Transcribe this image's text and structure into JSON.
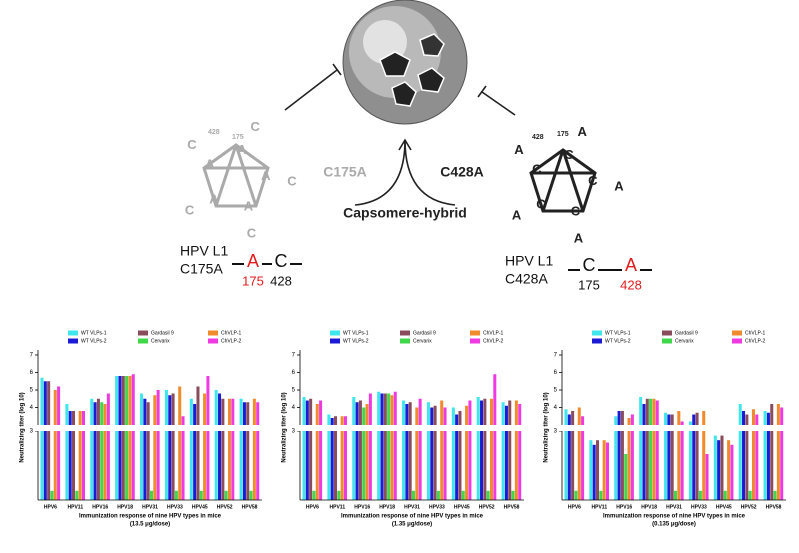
{
  "diagram": {
    "center_labels": {
      "left": "C175A",
      "right": "C428A",
      "bottom": "Capsomere-hybrid"
    },
    "left": {
      "protein": "HPV L1",
      "mutant": "C175A",
      "letters": [
        "A",
        "C"
      ],
      "numbers": [
        "175",
        "428"
      ],
      "pentagon_numbers": [
        "428",
        "175"
      ],
      "inner": [
        "A",
        "A",
        "A",
        "A",
        "A"
      ],
      "outer": [
        "C",
        "C",
        "C",
        "C",
        "C"
      ]
    },
    "right": {
      "protein": "HPV L1",
      "mutant": "C428A",
      "letters": [
        "C",
        "A"
      ],
      "numbers": [
        "175",
        "428"
      ],
      "pentagon_numbers": [
        "428",
        "175"
      ],
      "inner": [
        "C",
        "C",
        "C",
        "C",
        "C"
      ],
      "outer": [
        "A",
        "A",
        "A",
        "A",
        "A"
      ]
    }
  },
  "chart_data": [
    {
      "type": "bar",
      "subtitle": "(13.5 μg/dose)",
      "x_label": "Immunization response of nine HPV types in mice",
      "y_label": "Neutralizing titer (log 10)",
      "categories": [
        "HPV6",
        "HPV11",
        "HPV16",
        "HPV18",
        "HPV31",
        "HPV33",
        "HPV45",
        "HPV52",
        "HPV58"
      ],
      "ylim": [
        0,
        7
      ],
      "ybreak": 3,
      "yticks": [
        3,
        4,
        5,
        6,
        7
      ],
      "series": [
        {
          "name": "WT VLPs-1",
          "color": "#3fe6ee",
          "values": [
            5.7,
            4.2,
            4.5,
            5.8,
            4.8,
            5.0,
            4.5,
            5.0,
            4.5
          ]
        },
        {
          "name": "WT VLPs-2",
          "color": "#1b1bd6",
          "values": [
            5.5,
            3.8,
            4.3,
            5.8,
            4.5,
            4.7,
            4.2,
            4.8,
            4.3
          ]
        },
        {
          "name": "Gardasil 9",
          "color": "#8a4c5c",
          "values": [
            5.5,
            3.8,
            4.5,
            5.8,
            4.3,
            4.8,
            5.2,
            4.5,
            4.3
          ]
        },
        {
          "name": "Cervarix",
          "color": "#3fd84a",
          "values": [
            0.4,
            0.4,
            4.3,
            5.8,
            0.4,
            0.4,
            0.4,
            0.4,
            0.4
          ]
        },
        {
          "name": "ChVLP-1",
          "color": "#f08a2c",
          "values": [
            5.0,
            3.8,
            4.2,
            5.8,
            4.7,
            5.2,
            4.8,
            4.5,
            4.5
          ]
        },
        {
          "name": "ChVLP-2",
          "color": "#ee3ae0",
          "values": [
            5.2,
            3.8,
            4.8,
            5.9,
            5.0,
            3.5,
            5.8,
            4.5,
            4.3
          ]
        }
      ]
    },
    {
      "type": "bar",
      "subtitle": "(1.35 μg/dose)",
      "x_label": "Immunization response of nine HPV types in mice",
      "y_label": "Neutralizing titer (log 10)",
      "categories": [
        "HPV6",
        "HPV11",
        "HPV16",
        "HPV18",
        "HPV31",
        "HPV33",
        "HPV45",
        "HPV52",
        "HPV58"
      ],
      "ylim": [
        0,
        7
      ],
      "ybreak": 3,
      "yticks": [
        3,
        4,
        5,
        6,
        7
      ],
      "series": [
        {
          "name": "WT VLPs-1",
          "color": "#3fe6ee",
          "values": [
            4.6,
            3.6,
            4.6,
            4.9,
            4.4,
            4.3,
            4.0,
            4.6,
            4.3
          ]
        },
        {
          "name": "WT VLPs-2",
          "color": "#1b1bd6",
          "values": [
            4.4,
            3.4,
            4.3,
            4.8,
            4.2,
            4.0,
            3.6,
            4.4,
            4.1
          ]
        },
        {
          "name": "Gardasil 9",
          "color": "#8a4c5c",
          "values": [
            4.5,
            3.5,
            4.4,
            4.8,
            4.3,
            4.1,
            3.8,
            4.5,
            4.4
          ]
        },
        {
          "name": "Cervarix",
          "color": "#3fd84a",
          "values": [
            0.4,
            0.4,
            4.0,
            4.8,
            0.4,
            0.4,
            0.4,
            0.4,
            0.4
          ]
        },
        {
          "name": "ChVLP-1",
          "color": "#f08a2c",
          "values": [
            4.2,
            3.5,
            4.2,
            4.7,
            4.0,
            4.4,
            4.1,
            4.5,
            4.4
          ]
        },
        {
          "name": "ChVLP-2",
          "color": "#ee3ae0",
          "values": [
            4.4,
            3.5,
            4.8,
            4.9,
            4.5,
            4.0,
            4.4,
            5.9,
            4.2
          ]
        }
      ]
    },
    {
      "type": "bar",
      "subtitle": "(0.135 μg/dose)",
      "x_label": "Immunization response of nine HPV types in mice",
      "y_label": "Neutralizing titer (log 10)",
      "categories": [
        "HPV6",
        "HPV11",
        "HPV16",
        "HPV18",
        "HPV31",
        "HPV33",
        "HPV45",
        "HPV52",
        "HPV58"
      ],
      "ylim": [
        0,
        7
      ],
      "ybreak": 3,
      "yticks": [
        3,
        4,
        5,
        6,
        7
      ],
      "series": [
        {
          "name": "WT VLPs-1",
          "color": "#3fe6ee",
          "values": [
            3.9,
            2.6,
            3.5,
            4.6,
            3.7,
            3.2,
            2.8,
            4.2,
            3.8
          ]
        },
        {
          "name": "WT VLPs-2",
          "color": "#1b1bd6",
          "values": [
            3.6,
            2.4,
            3.8,
            4.2,
            3.6,
            3.6,
            2.6,
            3.8,
            3.7
          ]
        },
        {
          "name": "Gardasil 9",
          "color": "#8a4c5c",
          "values": [
            3.8,
            2.6,
            3.8,
            4.5,
            3.6,
            3.7,
            2.8,
            3.6,
            4.2
          ]
        },
        {
          "name": "Cervarix",
          "color": "#3fd84a",
          "values": [
            0.4,
            0.4,
            2.0,
            4.5,
            0.4,
            0.4,
            0.4,
            0.4,
            0.4
          ]
        },
        {
          "name": "ChVLP-1",
          "color": "#f08a2c",
          "values": [
            4.0,
            2.6,
            3.4,
            4.5,
            3.8,
            3.8,
            2.6,
            3.9,
            4.2
          ]
        },
        {
          "name": "ChVLP-2",
          "color": "#ee3ae0",
          "values": [
            3.5,
            2.5,
            3.6,
            4.4,
            3.2,
            2.0,
            2.4,
            3.6,
            4.0
          ]
        }
      ]
    }
  ]
}
